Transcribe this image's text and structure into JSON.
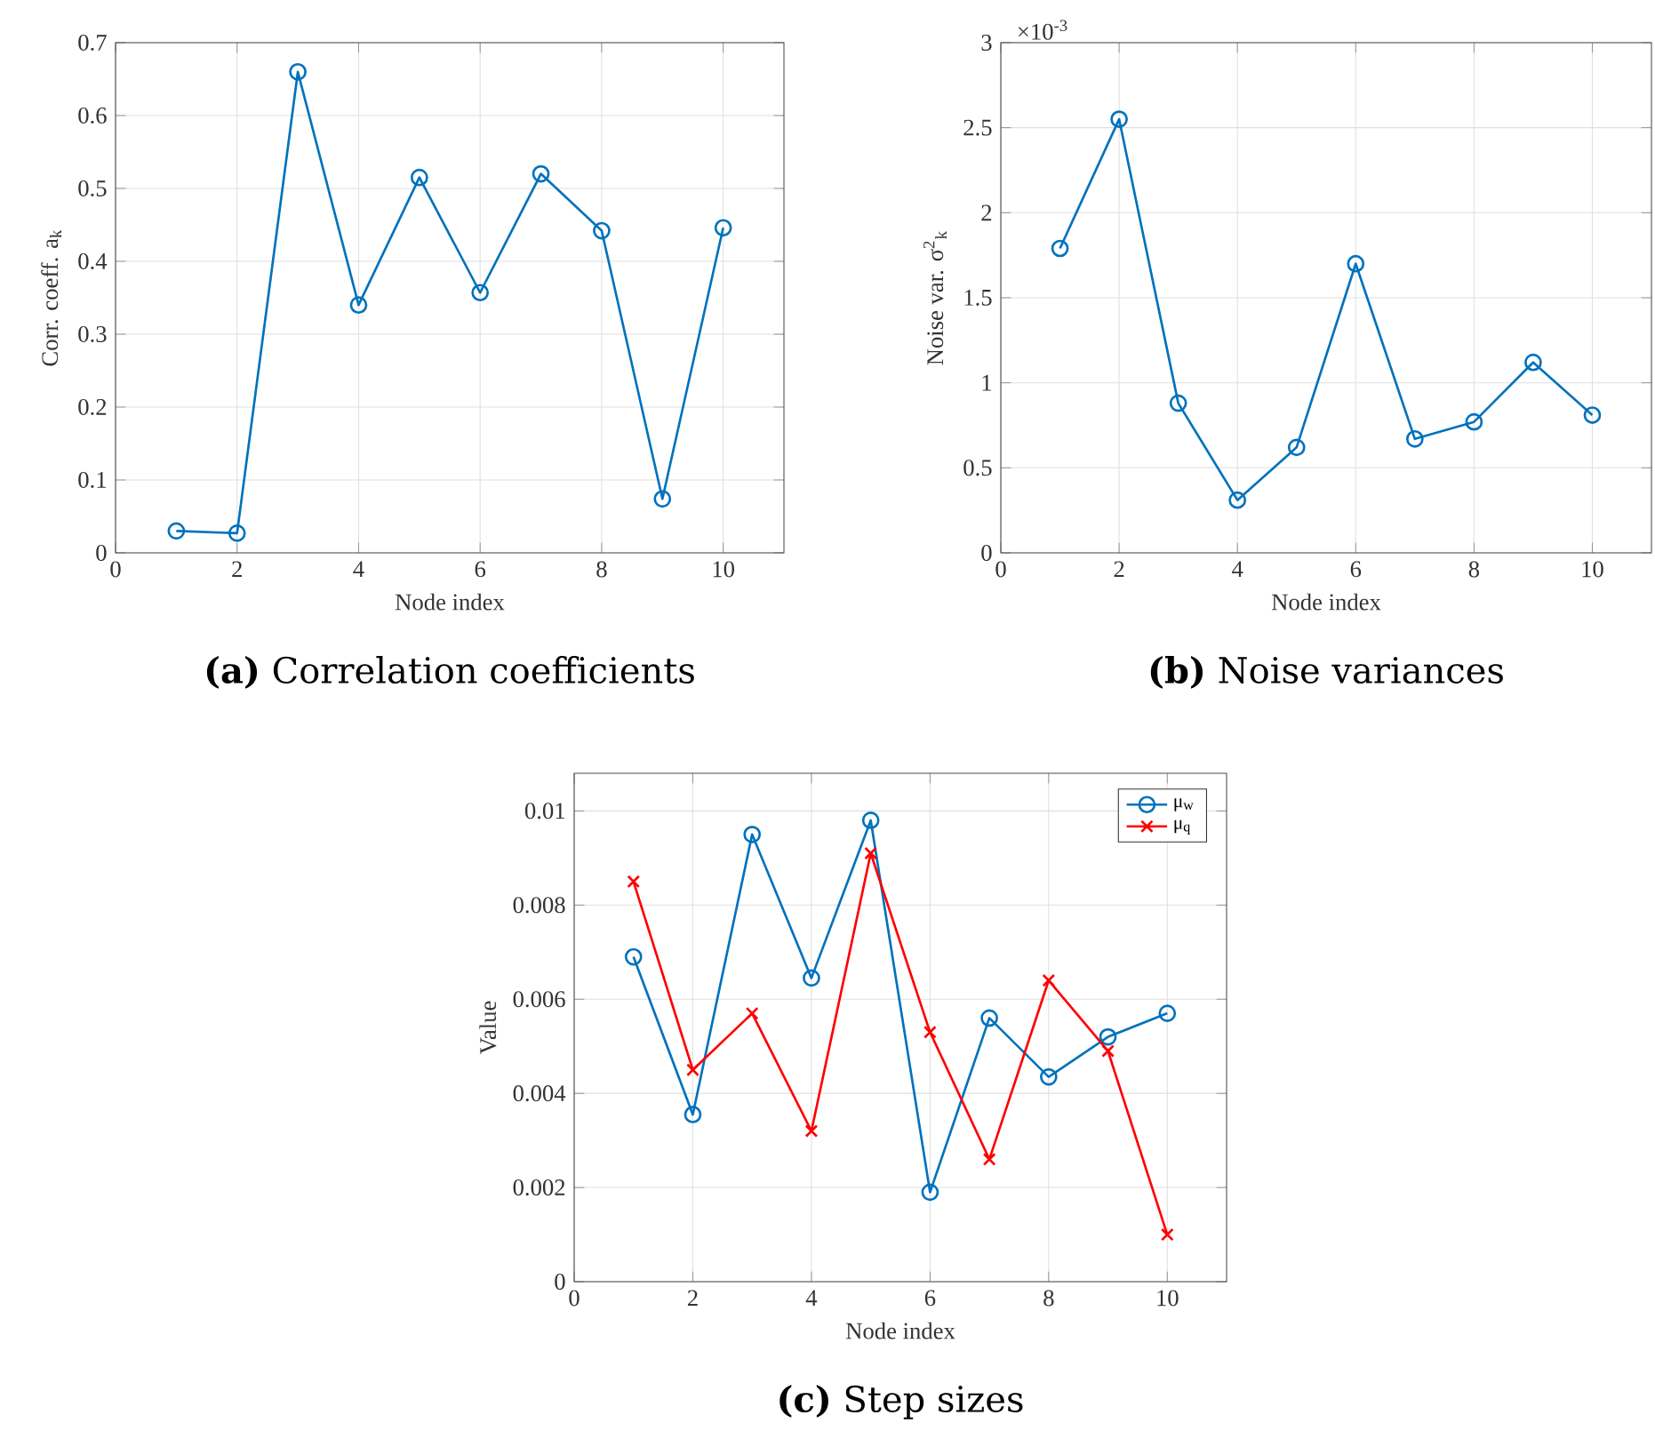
{
  "chart_data": [
    {
      "type": "line",
      "title": "**(a)** Correlation coefficients",
      "xlabel": "Node index",
      "ylabel": "Corr. coeff. a$_{k}$",
      "x": [
        1,
        2,
        3,
        4,
        5,
        6,
        7,
        8,
        9,
        10
      ],
      "xlim": [
        0,
        11
      ],
      "ylim": [
        0,
        0.7
      ],
      "xticks": [
        0,
        2,
        4,
        6,
        8,
        10
      ],
      "yticks": [
        0,
        0.1,
        0.2,
        0.3,
        0.4,
        0.5,
        0.6,
        0.7
      ],
      "grid": true,
      "marker": "circle",
      "series": [
        {
          "color": "#0072bd",
          "values": [
            0.03,
            0.027,
            0.66,
            0.34,
            0.515,
            0.357,
            0.52,
            0.442,
            0.074,
            0.446
          ]
        }
      ]
    },
    {
      "type": "line",
      "title": "**(b)** Noise variances",
      "xlabel": "Node index",
      "ylabel": "Noise var. σ$^{2}$$_{k}$",
      "annotations": [
        "×10$^{-3}$"
      ],
      "x": [
        1,
        2,
        3,
        4,
        5,
        6,
        7,
        8,
        9,
        10
      ],
      "xlim": [
        0,
        11
      ],
      "ylim": [
        0,
        3
      ],
      "xticks": [
        0,
        2,
        4,
        6,
        8,
        10
      ],
      "yticks": [
        0,
        0.5,
        1,
        1.5,
        2,
        2.5,
        3
      ],
      "grid": true,
      "marker": "circle",
      "series": [
        {
          "color": "#0072bd",
          "values": [
            1.79,
            2.55,
            0.88,
            0.31,
            0.62,
            1.7,
            0.67,
            0.77,
            1.12,
            0.81
          ]
        }
      ]
    },
    {
      "type": "line",
      "title": "**(c)** Step sizes",
      "xlabel": "Node index",
      "ylabel": "Value",
      "x": [
        1,
        2,
        3,
        4,
        5,
        6,
        7,
        8,
        9,
        10
      ],
      "xlim": [
        0,
        11
      ],
      "ylim": [
        0,
        0.0108
      ],
      "xticks": [
        0,
        2,
        4,
        6,
        8,
        10
      ],
      "yticks": [
        0,
        0.002,
        0.004,
        0.006,
        0.008,
        0.01
      ],
      "grid": true,
      "legend": "top right",
      "series": [
        {
          "name": "μ$_{w}$",
          "color": "#0072bd",
          "marker": "circle",
          "values": [
            0.0069,
            0.00355,
            0.0095,
            0.00645,
            0.0098,
            0.0019,
            0.0056,
            0.00435,
            0.0052,
            0.0057
          ]
        },
        {
          "name": "μ$_{q}$",
          "color": "#ff0000",
          "marker": "cross",
          "values": [
            0.0085,
            0.0045,
            0.0057,
            0.0032,
            0.0091,
            0.0053,
            0.0026,
            0.0064,
            0.0049,
            0.001
          ]
        }
      ]
    }
  ]
}
